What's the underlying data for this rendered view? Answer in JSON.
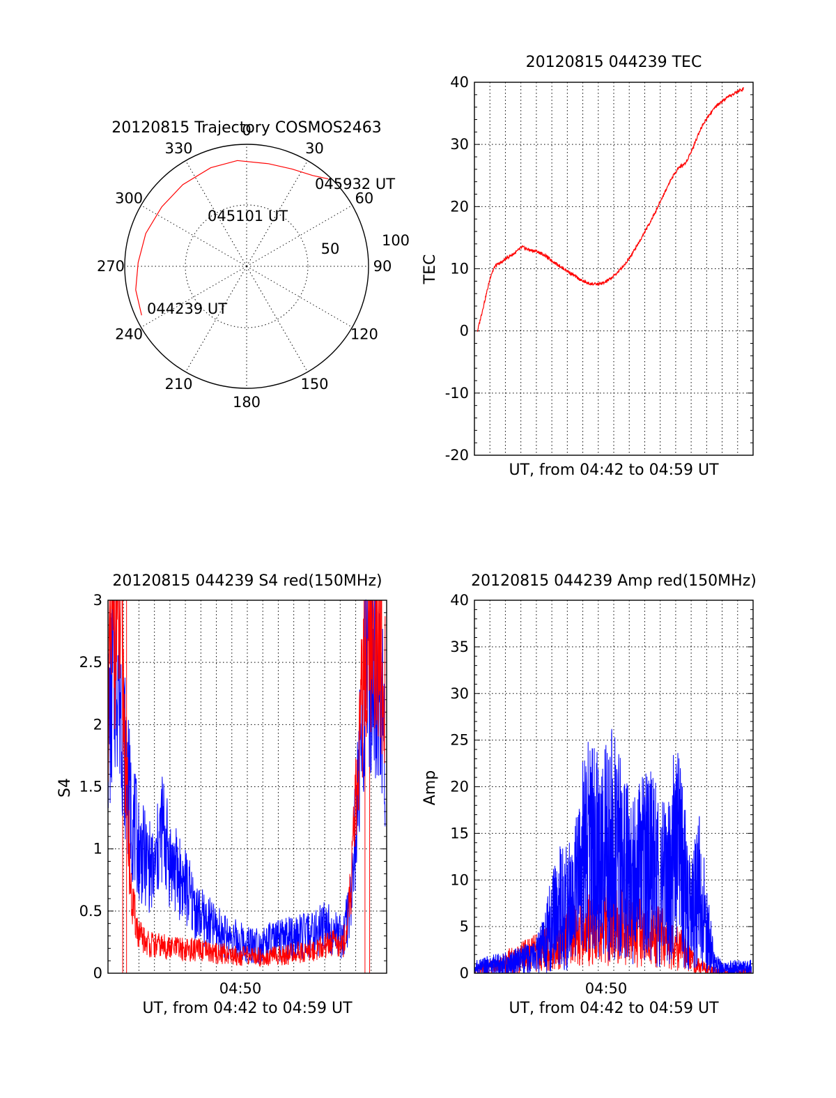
{
  "chart_data": [
    {
      "type": "polar",
      "title": "20120815 Trajectory COSMOS2463",
      "angle_labels": [
        "0",
        "30",
        "60",
        "90",
        "120",
        "150",
        "180",
        "210",
        "240",
        "270",
        "300",
        "330"
      ],
      "radius_labels": [
        "50",
        "100"
      ],
      "colors": {
        "track": "#ff0000"
      },
      "track": {
        "azimuth_deg": [
          245,
          258,
          272,
          288,
          305,
          322,
          340,
          355,
          12,
          25,
          36,
          43
        ],
        "zenith_deg": [
          95,
          93,
          89,
          87,
          85,
          85,
          86,
          87,
          86,
          88,
          92,
          98
        ]
      },
      "annotations": [
        "044239 UT",
        "045101 UT",
        "045932 UT"
      ]
    },
    {
      "type": "line",
      "title": "20120815 044239 TEC",
      "xlabel": "UT, from 04:42 to 04:59 UT",
      "ylabel": "TEC",
      "ylim": [
        -20,
        40
      ],
      "yticks": [
        "-20",
        "-10",
        "0",
        "10",
        "20",
        "30",
        "40"
      ],
      "grid": true,
      "series": [
        {
          "color": "#ff0000",
          "x": [
            0.0,
            0.3,
            0.6,
            0.9,
            1.2,
            1.6,
            2.0,
            2.5,
            3.0,
            3.5,
            4.0,
            4.5,
            5.0,
            5.5,
            6.0,
            6.5,
            7.0,
            7.5,
            8.0,
            8.5,
            9.0,
            9.5,
            10.0,
            10.5,
            11.0,
            11.5,
            12.0,
            12.5,
            13.0,
            13.5,
            14.0,
            14.5,
            15.0,
            15.5,
            16.0,
            16.5,
            17.0,
            17.5,
            17.9
          ],
          "values": [
            0,
            3,
            6,
            9,
            10.5,
            11,
            11.8,
            12.5,
            13.5,
            13.0,
            12.8,
            12.2,
            11.3,
            10.5,
            9.7,
            8.9,
            8.1,
            7.6,
            7.5,
            7.7,
            8.5,
            9.6,
            11.0,
            12.8,
            14.8,
            17.0,
            19.3,
            21.8,
            24.3,
            26.2,
            27.0,
            29.5,
            32.5,
            34.5,
            36.0,
            37.0,
            37.8,
            38.5,
            39.0
          ]
        }
      ]
    },
    {
      "type": "line",
      "title": "20120815 044239 S4 red(150MHz)",
      "xlabel": "UT, from 04:42 to 04:59 UT",
      "ylabel": "S4",
      "ylim": [
        0,
        3
      ],
      "yticks": [
        "0",
        "0.5",
        "1",
        "1.5",
        "2",
        "2.5",
        "3"
      ],
      "xticks": [
        "04:50"
      ],
      "grid": true,
      "series": [
        {
          "color": "#0000ff",
          "x": [
            0,
            0.3,
            0.6,
            0.9,
            1.2,
            1.5,
            2.0,
            2.5,
            3.0,
            3.5,
            4.0,
            4.5,
            5.0,
            5.5,
            6.0,
            6.5,
            7.0,
            7.5,
            8.0,
            8.5,
            9.0,
            9.5,
            10.0,
            10.5,
            11.0,
            11.5,
            12.0,
            12.5,
            13.0,
            13.5,
            14.0,
            14.5,
            15.0,
            15.2,
            15.5,
            15.8,
            16.2,
            16.6,
            17.0,
            17.5,
            17.9
          ],
          "values": [
            1.9,
            2.3,
            2.6,
            2.1,
            1.6,
            1.3,
            1.0,
            0.9,
            0.8,
            1.2,
            0.9,
            0.8,
            0.7,
            0.55,
            0.45,
            0.4,
            0.35,
            0.3,
            0.28,
            0.25,
            0.24,
            0.24,
            0.23,
            0.25,
            0.26,
            0.28,
            0.28,
            0.3,
            0.3,
            0.32,
            0.4,
            0.35,
            0.3,
            0.3,
            0.45,
            0.8,
            1.5,
            2.4,
            2.6,
            2.2,
            1.9
          ]
        },
        {
          "color": "#ff0000",
          "x": [
            0,
            0.3,
            0.6,
            0.9,
            1.2,
            1.5,
            2.0,
            2.5,
            3.0,
            3.5,
            4.0,
            4.5,
            5.0,
            5.5,
            6.0,
            6.5,
            7.0,
            7.5,
            8.0,
            8.5,
            9.0,
            9.5,
            10.0,
            10.5,
            11.0,
            11.5,
            12.0,
            12.5,
            13.0,
            13.5,
            14.0,
            14.5,
            15.0,
            15.2,
            15.5,
            15.8,
            16.2,
            16.6,
            17.0,
            17.5,
            17.9
          ],
          "values": [
            2.2,
            2.8,
            2.9,
            2.6,
            1.5,
            0.6,
            0.3,
            0.25,
            0.22,
            0.22,
            0.2,
            0.2,
            0.19,
            0.19,
            0.18,
            0.17,
            0.16,
            0.16,
            0.15,
            0.14,
            0.14,
            0.14,
            0.13,
            0.14,
            0.14,
            0.15,
            0.16,
            0.17,
            0.18,
            0.19,
            0.22,
            0.25,
            0.22,
            0.24,
            0.4,
            0.9,
            1.8,
            2.6,
            2.8,
            2.5,
            2.4
          ]
        }
      ]
    },
    {
      "type": "line",
      "title": "20120815 044239 Amp red(150MHz)",
      "xlabel": "UT, from 04:42 to 04:59 UT",
      "ylabel": "Amp",
      "ylim": [
        0,
        40
      ],
      "yticks": [
        "0",
        "5",
        "10",
        "15",
        "20",
        "25",
        "30",
        "35",
        "40"
      ],
      "xticks": [
        "04:50"
      ],
      "grid": true,
      "series": [
        {
          "color": "#ff0000",
          "x": [
            0,
            1,
            2,
            3,
            4,
            5,
            5.5,
            6,
            6.5,
            7,
            7.5,
            8,
            8.5,
            9,
            9.5,
            10,
            10.5,
            11,
            11.5,
            12,
            12.5,
            13,
            13.5,
            14,
            14.5,
            15,
            16,
            17,
            17.9
          ],
          "values": [
            0.2,
            0.6,
            1.2,
            1.7,
            2.2,
            2.8,
            3.2,
            3.8,
            4.2,
            4.6,
            4.9,
            5.0,
            5.1,
            5.0,
            4.8,
            4.6,
            4.4,
            4.2,
            4.0,
            3.8,
            3.5,
            3.0,
            2.2,
            1.5,
            0.8,
            0.4,
            0.2,
            0.2,
            0.1
          ]
        },
        {
          "color": "#0000ff",
          "x": [
            0,
            1,
            2,
            3,
            4,
            4.5,
            5,
            5.5,
            6,
            6.5,
            7,
            7.5,
            8,
            8.5,
            9,
            9.5,
            10,
            10.5,
            11,
            11.5,
            12,
            12.5,
            13,
            13.5,
            14,
            14.5,
            15,
            15.5,
            16,
            16.5,
            17,
            17.9
          ],
          "values": [
            0.5,
            0.8,
            1.0,
            1.3,
            1.8,
            3.0,
            5.5,
            7.0,
            7.0,
            8.0,
            12.0,
            14.0,
            12.0,
            13.0,
            14.0,
            12.0,
            11.0,
            10.0,
            12.0,
            11.0,
            10.0,
            9.0,
            14.0,
            10.0,
            6.0,
            9.0,
            5.0,
            1.0,
            0.5,
            0.5,
            0.6,
            0.6
          ]
        }
      ]
    }
  ]
}
